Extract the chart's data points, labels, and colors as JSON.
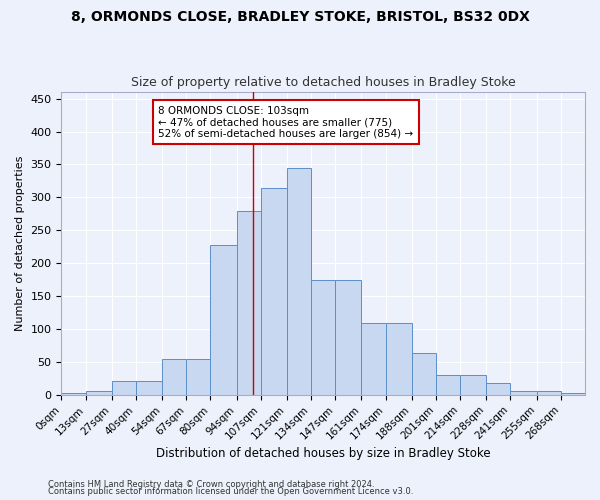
{
  "title1": "8, ORMONDS CLOSE, BRADLEY STOKE, BRISTOL, BS32 0DX",
  "title2": "Size of property relative to detached houses in Bradley Stoke",
  "xlabel": "Distribution of detached houses by size in Bradley Stoke",
  "ylabel": "Number of detached properties",
  "bar_labels": [
    "0sqm",
    "13sqm",
    "27sqm",
    "40sqm",
    "54sqm",
    "67sqm",
    "80sqm",
    "94sqm",
    "107sqm",
    "121sqm",
    "134sqm",
    "147sqm",
    "161sqm",
    "174sqm",
    "188sqm",
    "201sqm",
    "214sqm",
    "228sqm",
    "241sqm",
    "255sqm",
    "268sqm"
  ],
  "bar_values": [
    3,
    6,
    21,
    21,
    54,
    54,
    228,
    280,
    315,
    345,
    175,
    175,
    109,
    109,
    63,
    30,
    30,
    18,
    6,
    6,
    3
  ],
  "bin_edges": [
    0,
    13,
    27,
    40,
    54,
    67,
    80,
    94,
    107,
    121,
    134,
    147,
    161,
    174,
    188,
    201,
    214,
    228,
    241,
    255,
    268,
    281
  ],
  "bar_color": "#c8d8f0",
  "bar_edge_color": "#5b8fc9",
  "vline_x": 103,
  "vline_color": "#cc0000",
  "annotation_text": "8 ORMONDS CLOSE: 103sqm\n← 47% of detached houses are smaller (775)\n52% of semi-detached houses are larger (854) →",
  "footer1": "Contains HM Land Registry data © Crown copyright and database right 2024.",
  "footer2": "Contains public sector information licensed under the Open Government Licence v3.0.",
  "ylim": [
    0,
    460
  ],
  "yticks": [
    0,
    50,
    100,
    150,
    200,
    250,
    300,
    350,
    400,
    450
  ],
  "bg_color": "#edf1fb",
  "grid_color": "#ffffff"
}
